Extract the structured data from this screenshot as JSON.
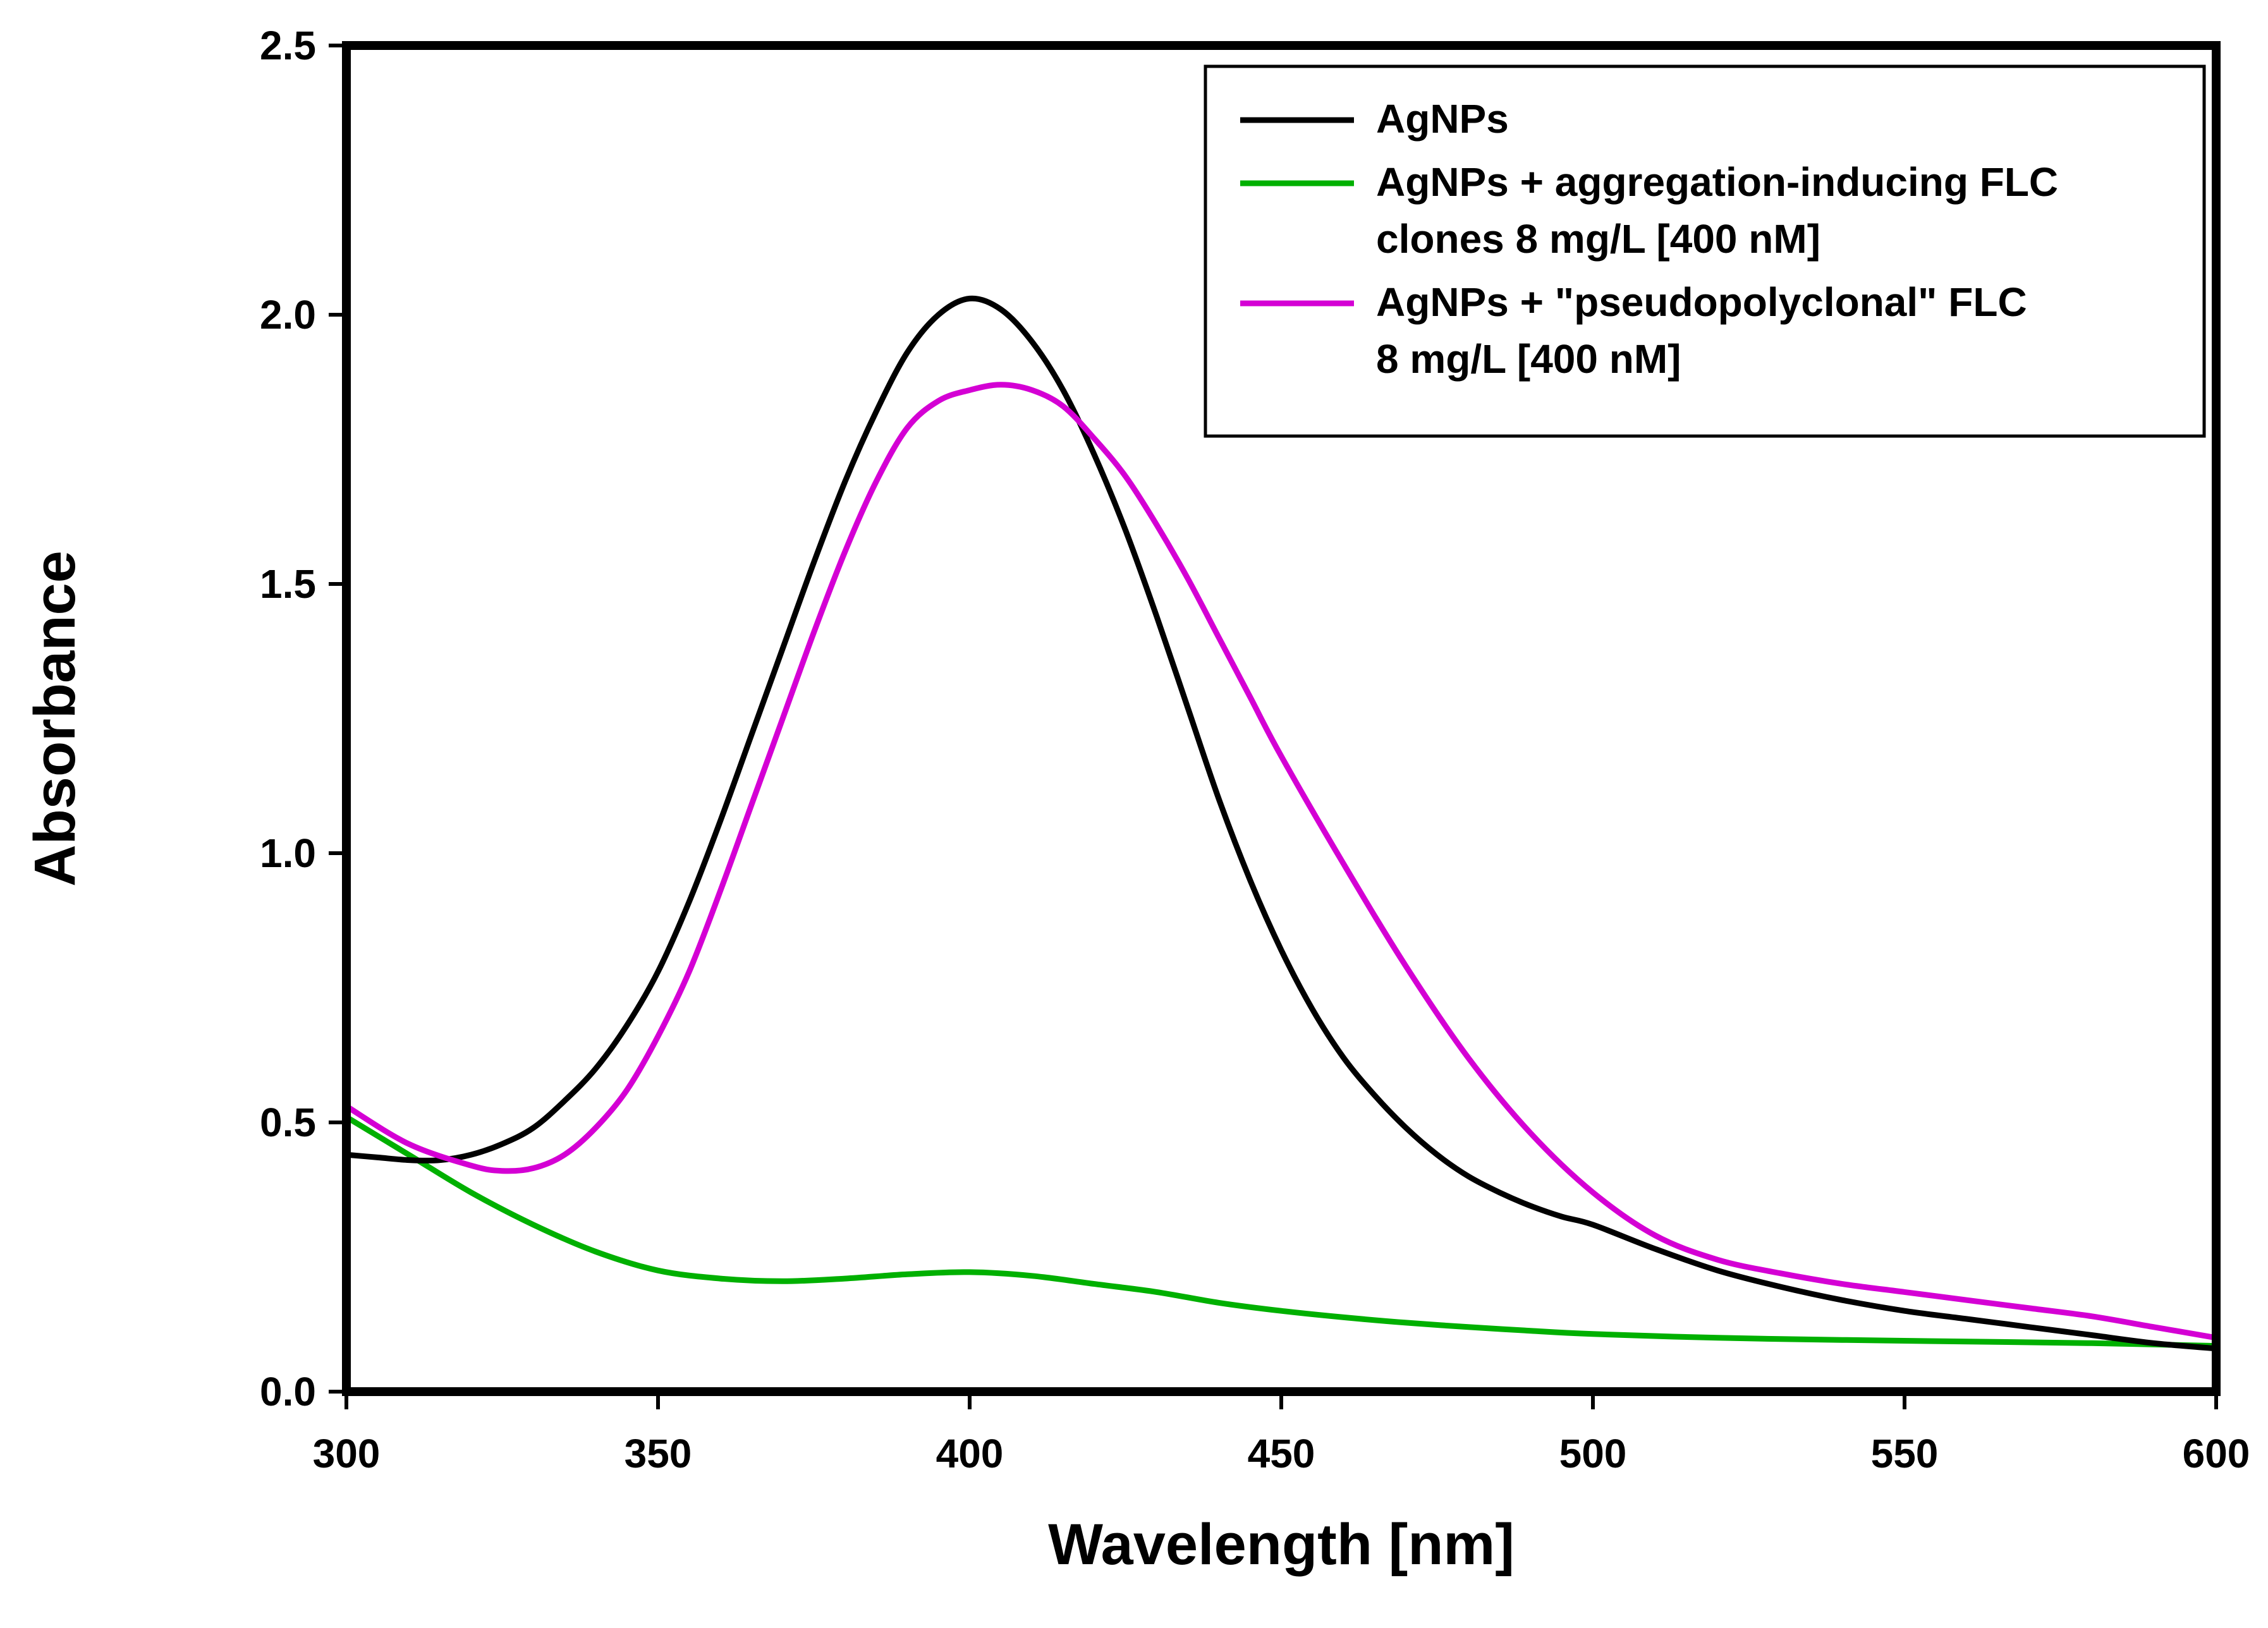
{
  "chart_data": {
    "type": "line",
    "title": "",
    "xlabel": "Wavelength [nm]",
    "ylabel": "Absorbance",
    "xlim": [
      300,
      600
    ],
    "ylim": [
      0.0,
      2.5
    ],
    "x_ticks": [
      "300",
      "350",
      "400",
      "450",
      "500",
      "550",
      "600"
    ],
    "y_ticks": [
      "0.0",
      "0.5",
      "1.0",
      "1.5",
      "2.0",
      "2.5"
    ],
    "grid": false,
    "legend_position": "top-right",
    "series": [
      {
        "name": "AgNPs",
        "legend_lines": [
          "AgNPs"
        ],
        "color": "#000000",
        "x": [
          300,
          305,
          310,
          315,
          320,
          325,
          330,
          335,
          340,
          345,
          350,
          355,
          360,
          365,
          370,
          375,
          380,
          385,
          390,
          395,
          400,
          405,
          410,
          415,
          420,
          425,
          430,
          435,
          440,
          445,
          450,
          455,
          460,
          465,
          470,
          475,
          480,
          485,
          490,
          495,
          500,
          510,
          520,
          530,
          540,
          550,
          560,
          570,
          580,
          590,
          600
        ],
        "y": [
          0.44,
          0.435,
          0.43,
          0.43,
          0.44,
          0.46,
          0.49,
          0.54,
          0.6,
          0.68,
          0.78,
          0.91,
          1.06,
          1.22,
          1.38,
          1.54,
          1.69,
          1.82,
          1.93,
          2.0,
          2.03,
          2.01,
          1.95,
          1.86,
          1.74,
          1.6,
          1.44,
          1.27,
          1.1,
          0.95,
          0.82,
          0.71,
          0.62,
          0.55,
          0.49,
          0.44,
          0.4,
          0.37,
          0.345,
          0.325,
          0.31,
          0.265,
          0.225,
          0.195,
          0.17,
          0.15,
          0.135,
          0.12,
          0.105,
          0.09,
          0.08
        ]
      },
      {
        "name": "AgNPs + aggregation-inducing FLC clones 8 mg/L [400 nM]",
        "legend_lines": [
          "AgNPs + aggregation-inducing FLC",
          "clones 8 mg/L [400 nM]"
        ],
        "color": "#00b000",
        "x": [
          300,
          310,
          320,
          330,
          340,
          350,
          360,
          370,
          380,
          390,
          400,
          410,
          420,
          430,
          440,
          450,
          460,
          470,
          480,
          490,
          500,
          520,
          540,
          560,
          580,
          600
        ],
        "y": [
          0.51,
          0.44,
          0.37,
          0.31,
          0.26,
          0.225,
          0.21,
          0.205,
          0.21,
          0.218,
          0.222,
          0.215,
          0.2,
          0.185,
          0.165,
          0.15,
          0.138,
          0.128,
          0.12,
          0.113,
          0.107,
          0.1,
          0.096,
          0.093,
          0.09,
          0.085
        ]
      },
      {
        "name": "AgNPs + \"pseudopolyclonal\" FLC 8 mg/L [400 nM]",
        "legend_lines": [
          "AgNPs + \"pseudopolyclonal\" FLC",
          "8 mg/L [400 nM]"
        ],
        "color": "#d400d4",
        "x": [
          300,
          310,
          320,
          325,
          330,
          335,
          340,
          345,
          350,
          355,
          360,
          365,
          370,
          375,
          380,
          385,
          390,
          395,
          400,
          405,
          410,
          415,
          420,
          425,
          430,
          435,
          440,
          445,
          450,
          460,
          470,
          480,
          490,
          500,
          510,
          520,
          530,
          540,
          550,
          560,
          570,
          580,
          590,
          600
        ],
        "y": [
          0.53,
          0.46,
          0.42,
          0.41,
          0.415,
          0.44,
          0.49,
          0.56,
          0.66,
          0.78,
          0.93,
          1.09,
          1.25,
          1.41,
          1.56,
          1.69,
          1.79,
          1.84,
          1.86,
          1.87,
          1.86,
          1.83,
          1.77,
          1.7,
          1.61,
          1.51,
          1.4,
          1.29,
          1.18,
          0.98,
          0.79,
          0.62,
          0.48,
          0.37,
          0.29,
          0.245,
          0.22,
          0.2,
          0.185,
          0.17,
          0.155,
          0.14,
          0.12,
          0.1
        ]
      }
    ]
  }
}
